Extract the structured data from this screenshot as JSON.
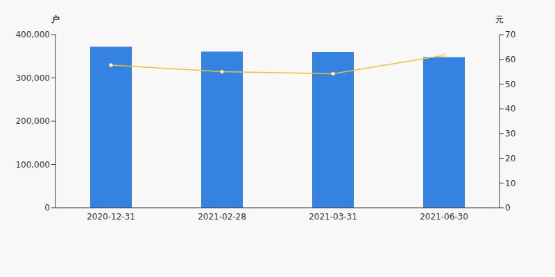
{
  "chart_data": {
    "type": "bar",
    "y_label": "户",
    "y2_label": "元",
    "categories": [
      "2020-12-31",
      "2021-02-28",
      "2021-03-31",
      "2021-06-30"
    ],
    "series": [
      {
        "name": "户",
        "type": "bar",
        "color": "#3482e2",
        "values": [
          372000,
          361000,
          360000,
          348000
        ]
      },
      {
        "name": "元",
        "type": "line",
        "axis": "y2",
        "color": "#f5c02a",
        "marker": "circle",
        "values": [
          57.7,
          55.0,
          54.2,
          61.6
        ]
      }
    ],
    "ylim": [
      0,
      400000
    ],
    "yticks": [
      0,
      {
        "value": 100000,
        "label": "100,000"
      },
      {
        "value": 200000,
        "label": "200,000"
      },
      {
        "value": 300000,
        "label": "300,000"
      },
      {
        "value": 400000,
        "label": "400,000"
      }
    ],
    "y2lim": [
      0,
      70
    ],
    "y2ticks": [
      0,
      10,
      20,
      30,
      40,
      50,
      60,
      70
    ],
    "grid": false
  }
}
